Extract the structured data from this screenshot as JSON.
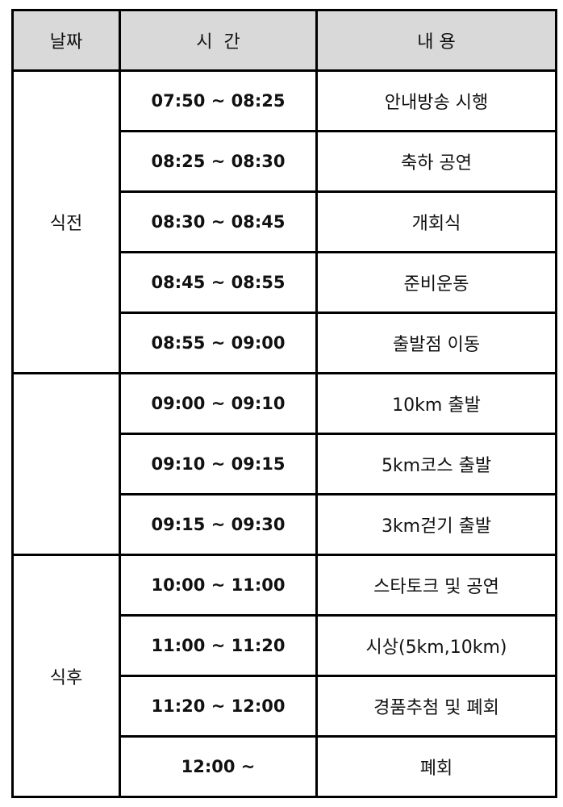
{
  "header": {
    "date": "날짜",
    "time": "시  간",
    "content": "내 용"
  },
  "groups": [
    {
      "label": "식전",
      "rows": [
        {
          "time": "07:50 ~ 08:25",
          "content": "안내방송 시행"
        },
        {
          "time": "08:25 ~ 08:30",
          "content": "축하 공연"
        },
        {
          "time": "08:30 ~ 08:45",
          "content": "개회식"
        },
        {
          "time": "08:45 ~ 08:55",
          "content": "준비운동"
        },
        {
          "time": "08:55 ~ 09:00",
          "content": "출발점 이동"
        }
      ]
    },
    {
      "label": "",
      "rows": [
        {
          "time": "09:00 ~ 09:10",
          "content": "10km 출발"
        },
        {
          "time": "09:10 ~ 09:15",
          "content": "5km코스 출발"
        },
        {
          "time": "09:15 ~ 09:30",
          "content": "3km걷기 출발"
        }
      ]
    },
    {
      "label": "식후",
      "rows": [
        {
          "time": "10:00 ~ 11:00",
          "content": "스타토크 및 공연"
        },
        {
          "time": "11:00 ~ 11:20",
          "content": "시상(5km,10km)"
        },
        {
          "time": "11:20 ~ 12:00",
          "content": "경품추첨 및 폐회"
        },
        {
          "time": "12:00 ~",
          "content": "폐회"
        }
      ]
    }
  ],
  "colors": {
    "header_bg": "#d9d9d9",
    "border": "#000000"
  }
}
